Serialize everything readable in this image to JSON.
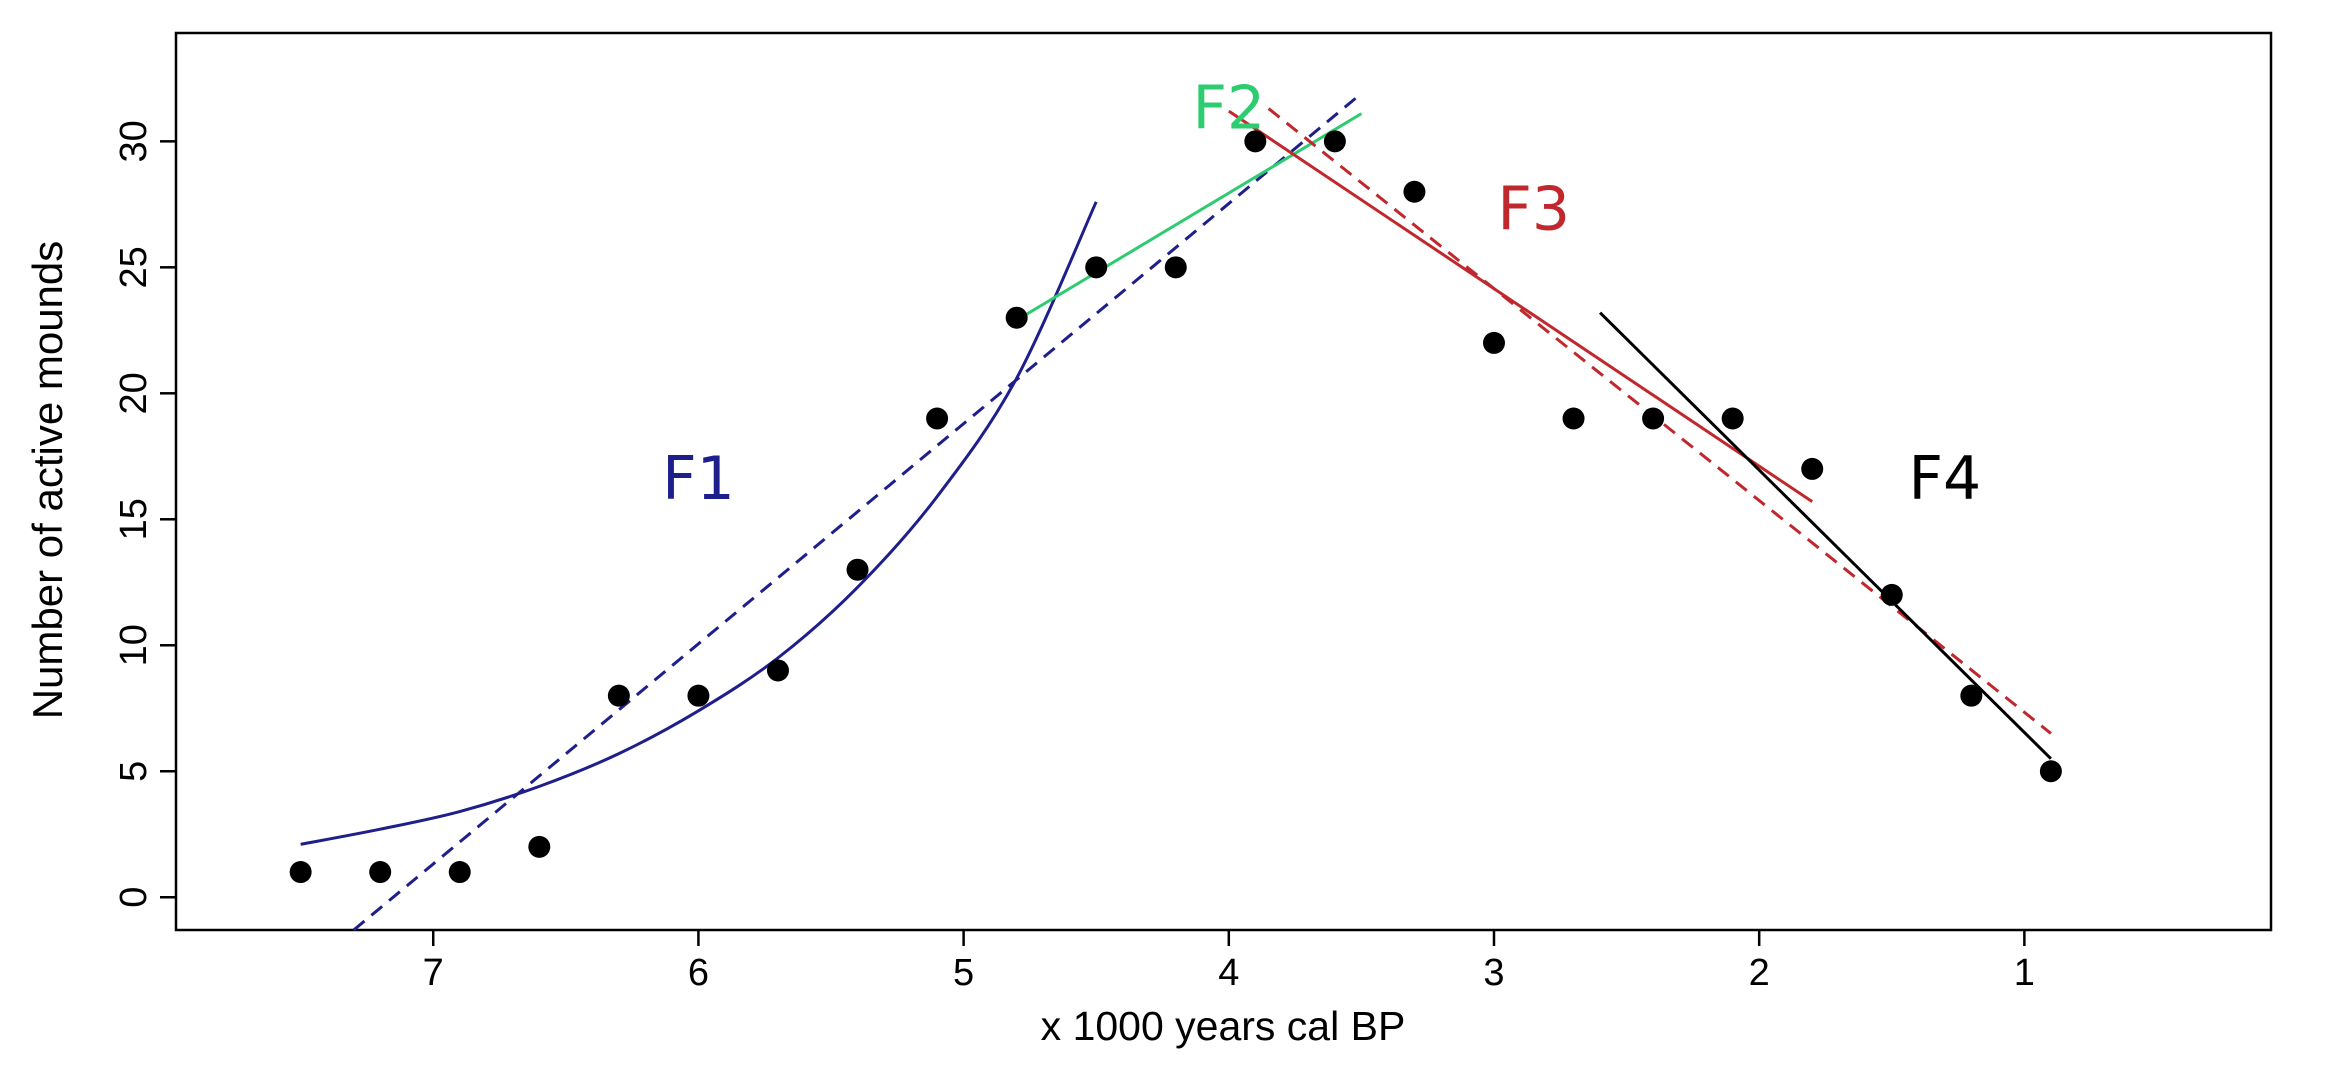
{
  "chart_data": {
    "type": "scatter",
    "xlabel": "x 1000 years cal BP",
    "ylabel": "Number of active mounds",
    "x_reversed": true,
    "xlim": [
      7.97,
      0.07
    ],
    "ylim": [
      -1.3,
      34.3
    ],
    "x_ticks": [
      7,
      6,
      5,
      4,
      3,
      2,
      1
    ],
    "y_ticks": [
      0,
      5,
      10,
      15,
      20,
      25,
      30
    ],
    "x_tick_labels": [
      "7",
      "6",
      "5",
      "4",
      "3",
      "2",
      "1"
    ],
    "y_tick_labels": [
      "0",
      "5",
      "10",
      "15",
      "20",
      "25",
      "30"
    ],
    "grid": false,
    "legend": "none",
    "points": {
      "x": [
        7.5,
        7.2,
        6.9,
        6.6,
        6.3,
        6.0,
        5.7,
        5.4,
        5.1,
        4.8,
        4.5,
        4.2,
        3.9,
        3.6,
        3.3,
        3.0,
        2.7,
        2.4,
        2.1,
        1.8,
        1.5,
        1.2,
        0.9
      ],
      "y": [
        1,
        1,
        1,
        2,
        8,
        8,
        9,
        13,
        19,
        23,
        25,
        25,
        30,
        30,
        28,
        22,
        19,
        19,
        19,
        17,
        12,
        8,
        5
      ],
      "color": "#000000"
    },
    "fits": [
      {
        "label": "F1",
        "color": "#1f1f8c",
        "label_pos": [
          6.0,
          15.8
        ],
        "lines": [
          {
            "kind": "curve",
            "dashed": false,
            "x": [
              7.5,
              7.2,
              6.9,
              6.6,
              6.3,
              6.0,
              5.7,
              5.4,
              5.1,
              4.8,
              4.5
            ],
            "y": [
              2.1,
              2.7,
              3.4,
              4.4,
              5.7,
              7.4,
              9.5,
              12.3,
              15.9,
              20.6,
              27.6
            ]
          },
          {
            "kind": "line",
            "dashed": true,
            "x": [
              7.3,
              3.5
            ],
            "y": [
              -1.3,
              31.9
            ]
          }
        ]
      },
      {
        "label": "F2",
        "color": "#2ecc71",
        "label_pos": [
          4.0,
          30.5
        ],
        "lines": [
          {
            "kind": "line",
            "dashed": false,
            "x": [
              4.8,
              3.5
            ],
            "y": [
              22.9,
              31.1
            ]
          }
        ]
      },
      {
        "label": "F3",
        "color": "#c0282d",
        "label_pos": [
          2.85,
          26.5
        ],
        "lines": [
          {
            "kind": "line",
            "dashed": false,
            "x": [
              4.0,
              1.8
            ],
            "y": [
              31.2,
              15.7
            ]
          },
          {
            "kind": "line",
            "dashed": true,
            "x": [
              3.85,
              0.9
            ],
            "y": [
              31.3,
              6.5
            ]
          }
        ]
      },
      {
        "label": "F4",
        "color": "#000000",
        "label_pos": [
          1.3,
          15.8
        ],
        "lines": [
          {
            "kind": "line",
            "dashed": false,
            "x": [
              2.6,
              0.9
            ],
            "y": [
              23.2,
              5.5
            ]
          }
        ]
      }
    ]
  }
}
